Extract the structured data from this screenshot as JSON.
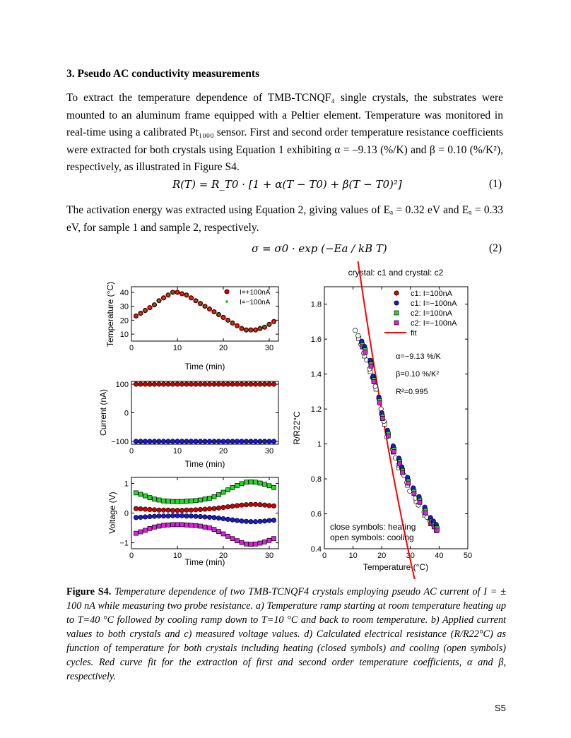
{
  "section": {
    "heading": "3. Pseudo AC conductivity measurements",
    "para1": "To extract the temperature dependence of TMB-TCNQF₄ single crystals, the substrates were mounted to an aluminum frame equipped with a Peltier element. Temperature was monitored in real-time using a calibrated Pt₁₀₀₀ sensor. First and second order temperature resistance coefficients were extracted for both crystals using Equation 1 exhibiting α = –9.13 (%/K) and β = 0.10 (%/K²), respectively, as illustrated in Figure S4.",
    "eq1": "R(T) = R_T0 · [1 + α(T − T0) + β(T − T0)²]",
    "eq1_num": "(1)",
    "para2": "The activation energy was extracted using Equation 2, giving values of Eₐ = 0.32 eV and Eₐ = 0.33 eV, for sample 1 and sample 2, respectively.",
    "eq2": "σ = σ0 · exp (−Ea / kB T)",
    "eq2_num": "(2)"
  },
  "caption": {
    "label": "Figure S4.",
    "text": "Temperature dependence of two TMB-TCNQF4 crystals employing pseudo AC current of I = ± 100 nA while measuring two probe resistance. a) Temperature ramp starting at room temperature heating up to T=40 °C followed by cooling ramp down to T=10 °C and back to room temperature. b) Applied current values to both crystals and c) measured voltage values. d) Calculated electrical resistance (R/R22°C) as function of temperature for both crystals including heating (closed symbols) and cooling (open symbols) cycles. Red curve fit for the extraction of first and second order temperature coefficients, α and β, respectively."
  },
  "page_number": "S5",
  "chart_data": [
    {
      "type": "scatter",
      "title": "",
      "xlabel": "Time (min)",
      "ylabel": "Temperature (°C)",
      "xlim": [
        0,
        32
      ],
      "ylim": [
        5,
        44
      ],
      "xticks": [
        0,
        10,
        20,
        30
      ],
      "yticks": [
        10,
        20,
        30,
        40
      ],
      "series": [
        {
          "name": "I=+100nA",
          "color": "#d40000",
          "x": [
            1,
            2,
            3,
            4,
            5,
            6,
            7,
            8,
            9,
            10,
            11,
            12,
            13,
            14,
            15,
            16,
            17,
            18,
            19,
            20,
            21,
            22,
            23,
            24,
            25,
            26,
            27,
            28,
            29,
            30,
            31
          ],
          "y": [
            23,
            25,
            27,
            29,
            31,
            34,
            36,
            38,
            40,
            40,
            39,
            38,
            36,
            34,
            32,
            30,
            28,
            26,
            24,
            22,
            20,
            18,
            16,
            14,
            13,
            13,
            13,
            14,
            15,
            17,
            19
          ]
        },
        {
          "name": "I=−100nA",
          "color": "#22aa22",
          "x": [
            1,
            2,
            3,
            4,
            5,
            6,
            7,
            8,
            9,
            10,
            11,
            12,
            13,
            14,
            15,
            16,
            17,
            18,
            19,
            20,
            21,
            22,
            23,
            24,
            25,
            26,
            27,
            28,
            29,
            30,
            31
          ],
          "y": [
            23,
            25,
            27,
            29,
            31,
            34,
            36,
            38,
            40,
            40,
            39,
            38,
            36,
            34,
            32,
            30,
            28,
            26,
            24,
            22,
            20,
            18,
            16,
            14,
            13,
            13,
            13,
            14,
            15,
            17,
            19
          ]
        }
      ]
    },
    {
      "type": "scatter",
      "title": "",
      "xlabel": "Time (min)",
      "ylabel": "Current (nA)",
      "xlim": [
        0,
        32
      ],
      "ylim": [
        -110,
        110
      ],
      "xticks": [
        0,
        10,
        20,
        30
      ],
      "yticks": [
        -100,
        0,
        100
      ],
      "series": [
        {
          "name": "+100 nA",
          "color": "#d40000",
          "value": 100
        },
        {
          "name": "−100 nA",
          "color": "#1a1ad0",
          "value": -100
        }
      ]
    },
    {
      "type": "scatter",
      "title": "",
      "xlabel": "Time (min)",
      "ylabel": "Voltage (V)",
      "xlim": [
        0,
        32
      ],
      "ylim": [
        -1.2,
        1.2
      ],
      "xticks": [
        0,
        10,
        20,
        30
      ],
      "yticks": [
        -1,
        0,
        1
      ],
      "series": [
        {
          "name": "c2: I=100nA",
          "color": "#22dd22",
          "marker": "square",
          "y": [
            0.68,
            0.63,
            0.58,
            0.52,
            0.47,
            0.44,
            0.41,
            0.4,
            0.39,
            0.39,
            0.39,
            0.4,
            0.41,
            0.42,
            0.44,
            0.47,
            0.5,
            0.55,
            0.62,
            0.7,
            0.78,
            0.86,
            0.93,
            0.99,
            1.04,
            1.05,
            1.04,
            1.01,
            0.97,
            0.92,
            0.86
          ]
        },
        {
          "name": "c1: I=100nA",
          "color": "#d40000",
          "marker": "circle",
          "y": [
            0.15,
            0.14,
            0.13,
            0.12,
            0.11,
            0.1,
            0.1,
            0.1,
            0.09,
            0.09,
            0.09,
            0.1,
            0.1,
            0.11,
            0.12,
            0.13,
            0.14,
            0.15,
            0.17,
            0.19,
            0.21,
            0.23,
            0.25,
            0.27,
            0.28,
            0.29,
            0.29,
            0.28,
            0.27,
            0.25,
            0.24
          ]
        },
        {
          "name": "c1: I=−100nA",
          "color": "#1a1ad0",
          "marker": "circle",
          "y": [
            -0.15,
            -0.14,
            -0.13,
            -0.12,
            -0.11,
            -0.1,
            -0.1,
            -0.1,
            -0.09,
            -0.09,
            -0.09,
            -0.1,
            -0.1,
            -0.11,
            -0.12,
            -0.13,
            -0.14,
            -0.15,
            -0.17,
            -0.19,
            -0.21,
            -0.23,
            -0.25,
            -0.27,
            -0.28,
            -0.29,
            -0.29,
            -0.28,
            -0.27,
            -0.25,
            -0.24
          ]
        },
        {
          "name": "c2: I=−100nA",
          "color": "#e020e0",
          "marker": "square",
          "y": [
            -0.68,
            -0.63,
            -0.58,
            -0.52,
            -0.47,
            -0.44,
            -0.41,
            -0.4,
            -0.39,
            -0.39,
            -0.39,
            -0.4,
            -0.41,
            -0.42,
            -0.44,
            -0.47,
            -0.5,
            -0.55,
            -0.62,
            -0.7,
            -0.78,
            -0.86,
            -0.93,
            -0.99,
            -1.04,
            -1.05,
            -1.04,
            -1.01,
            -0.97,
            -0.92,
            -0.86
          ]
        }
      ]
    },
    {
      "type": "scatter",
      "title": "crystal: c1 and crystal: c2",
      "xlabel": "Temperature (°C)",
      "ylabel": "R/R22°C",
      "xlim": [
        0,
        50
      ],
      "ylim": [
        0.4,
        1.9
      ],
      "xticks": [
        0,
        10,
        20,
        30,
        40,
        50
      ],
      "yticks": [
        0.4,
        0.6,
        0.8,
        1.0,
        1.2,
        1.4,
        1.6,
        1.8
      ],
      "legend": [
        "c1: I=100nA",
        "c1: I=−100nA",
        "c2: I=100nA",
        "c2: I=−100nA",
        "fit"
      ],
      "annotations": [
        "α=−9.13 %/K",
        "β=0.10 %/K²",
        "R²=0.995",
        "close symbols: heating",
        "open  symbols: cooling"
      ],
      "fit": {
        "name": "fit",
        "color": "#ff0000",
        "alpha": -9.13,
        "beta": 0.1,
        "T0": 22,
        "x_range": [
          10,
          42
        ]
      },
      "heating_points": {
        "T": [
          13,
          14,
          16,
          17,
          19,
          20,
          22,
          24,
          26,
          27,
          29,
          31,
          33,
          35,
          37,
          38,
          39
        ],
        "R": [
          1.58,
          1.55,
          1.47,
          1.38,
          1.26,
          1.17,
          1.07,
          0.98,
          0.91,
          0.86,
          0.8,
          0.74,
          0.69,
          0.63,
          0.57,
          0.55,
          0.53
        ]
      },
      "cooling_points": {
        "T": [
          11,
          12,
          13,
          14,
          15,
          16,
          17,
          18,
          20,
          21,
          22,
          24,
          25,
          26,
          28,
          29,
          30,
          32,
          33,
          35,
          36,
          37,
          38,
          39
        ],
        "R": [
          1.65,
          1.62,
          1.57,
          1.52,
          1.48,
          1.43,
          1.38,
          1.33,
          1.2,
          1.13,
          1.04,
          0.97,
          0.92,
          0.88,
          0.82,
          0.78,
          0.73,
          0.69,
          0.65,
          0.61,
          0.58,
          0.56,
          0.54,
          0.52
        ]
      }
    }
  ]
}
